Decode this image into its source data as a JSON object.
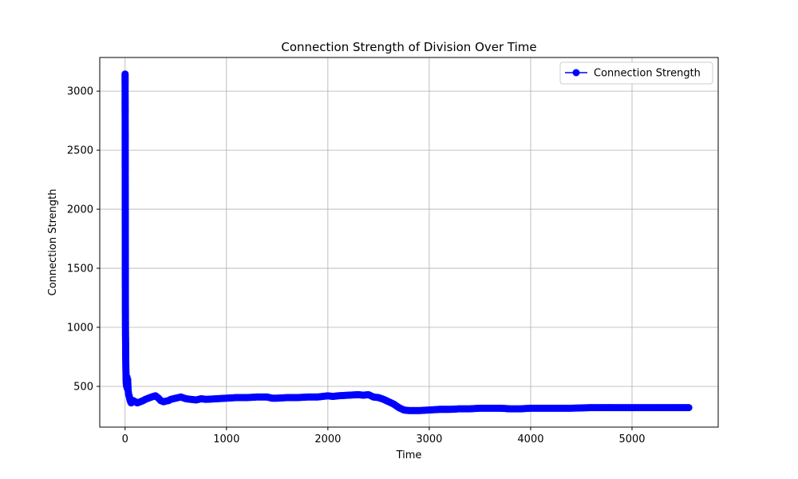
{
  "chart_data": {
    "type": "line",
    "title": "Connection Strength of Division Over Time",
    "xlabel": "Time",
    "ylabel": "Connection Strength",
    "xlim": [
      -250,
      5850
    ],
    "ylim": [
      155,
      3285
    ],
    "xticks": [
      0,
      1000,
      2000,
      3000,
      4000,
      5000
    ],
    "yticks": [
      500,
      1000,
      1500,
      2000,
      2500,
      3000
    ],
    "grid": true,
    "legend_position": "top-right",
    "series": [
      {
        "name": "Connection Strength",
        "color": "#0000ff",
        "marker": "circle",
        "x": [
          0,
          1,
          2,
          3,
          4,
          5,
          6,
          8,
          10,
          12,
          15,
          18,
          20,
          22,
          25,
          30,
          35,
          40,
          45,
          50,
          60,
          70,
          80,
          100,
          120,
          150,
          180,
          200,
          230,
          260,
          300,
          330,
          350,
          380,
          400,
          430,
          450,
          500,
          550,
          600,
          650,
          700,
          750,
          800,
          900,
          1000,
          1100,
          1200,
          1300,
          1400,
          1450,
          1500,
          1600,
          1700,
          1800,
          1900,
          2000,
          2050,
          2100,
          2200,
          2300,
          2350,
          2400,
          2450,
          2500,
          2550,
          2600,
          2650,
          2700,
          2750,
          2800,
          2900,
          3000,
          3100,
          3200,
          3300,
          3400,
          3500,
          3600,
          3700,
          3800,
          3900,
          4000,
          4200,
          4400,
          4600,
          4800,
          5000,
          5200,
          5400,
          5560
        ],
        "y": [
          3145,
          2455,
          1745,
          1180,
          945,
          860,
          740,
          640,
          560,
          520,
          500,
          580,
          520,
          480,
          560,
          470,
          430,
          420,
          400,
          380,
          360,
          370,
          380,
          370,
          360,
          370,
          380,
          390,
          400,
          410,
          420,
          400,
          380,
          370,
          375,
          380,
          390,
          400,
          410,
          395,
          390,
          385,
          395,
          390,
          395,
          400,
          405,
          405,
          410,
          410,
          400,
          400,
          405,
          405,
          410,
          410,
          420,
          415,
          420,
          425,
          430,
          425,
          430,
          410,
          405,
          390,
          370,
          350,
          320,
          300,
          295,
          295,
          300,
          305,
          305,
          310,
          310,
          315,
          315,
          315,
          310,
          310,
          315,
          315,
          315,
          320,
          320,
          320,
          320,
          320,
          320
        ]
      }
    ]
  }
}
